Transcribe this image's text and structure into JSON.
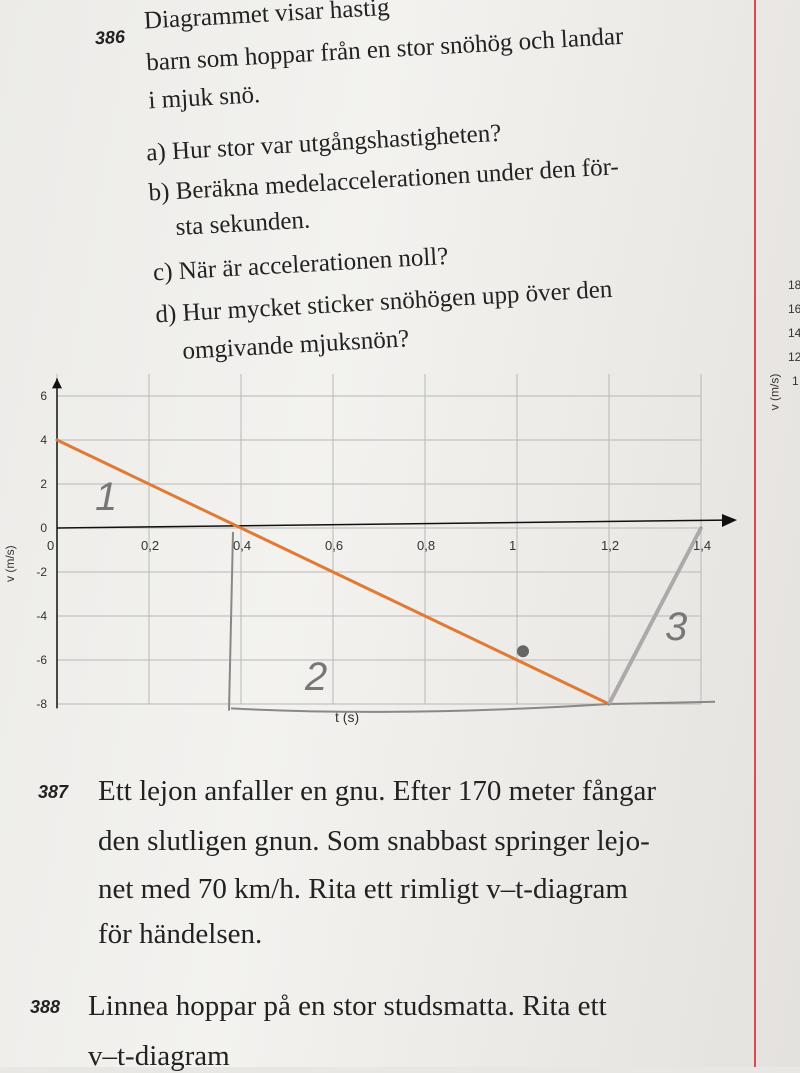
{
  "problem_386": {
    "number": "386",
    "lines": [
      "Diagrammet visar hastig",
      "barn som hoppar från en stor snöhög och landar",
      "i mjuk snö."
    ],
    "questions": [
      {
        "label": "a) Hur stor var utgångshastigheten?"
      },
      {
        "label": "b) Beräkna medelaccelerationen under den för-"
      },
      {
        "label": "sta sekunden."
      },
      {
        "label": "c) När är accelerationen noll?"
      },
      {
        "label": "d) Hur mycket sticker snöhögen upp över den"
      },
      {
        "label": "omgivande mjuksnön?"
      }
    ]
  },
  "chart_data": {
    "type": "line",
    "xlabel": "t (s)",
    "ylabel": "v (m/s)",
    "xlim": [
      0,
      1.4
    ],
    "ylim": [
      -8,
      6
    ],
    "x_ticks": [
      "0",
      "0,2",
      "0,4",
      "0,6",
      "0,8",
      "1",
      "1,2",
      "1,4"
    ],
    "y_ticks": [
      "6",
      "4",
      "2",
      "0",
      "-2",
      "-4",
      "-6",
      "-8"
    ],
    "grid": true,
    "series": [
      {
        "x": [
          0,
          1.2,
          1.4
        ],
        "y": [
          4,
          -8,
          0
        ],
        "color": "#e07a35"
      }
    ],
    "handwritten_marks": [
      "1",
      "2",
      "3"
    ]
  },
  "problem_387": {
    "number": "387",
    "lines": [
      "Ett lejon anfaller en gnu. Efter 170 meter fångar",
      "den slutligen gnun. Som snabbast springer lejo-",
      "net med 70 km/h. Rita ett rimligt v–t-diagram",
      "för händelsen."
    ]
  },
  "problem_388": {
    "number": "388",
    "lines": [
      "Linnea hoppar på en stor studsmatta. Rita ett",
      "v–t-diagram"
    ]
  },
  "side_margin": {
    "ticks": [
      "18",
      "16",
      "14",
      "12",
      "1"
    ],
    "ylabel": "v (m/s)"
  }
}
